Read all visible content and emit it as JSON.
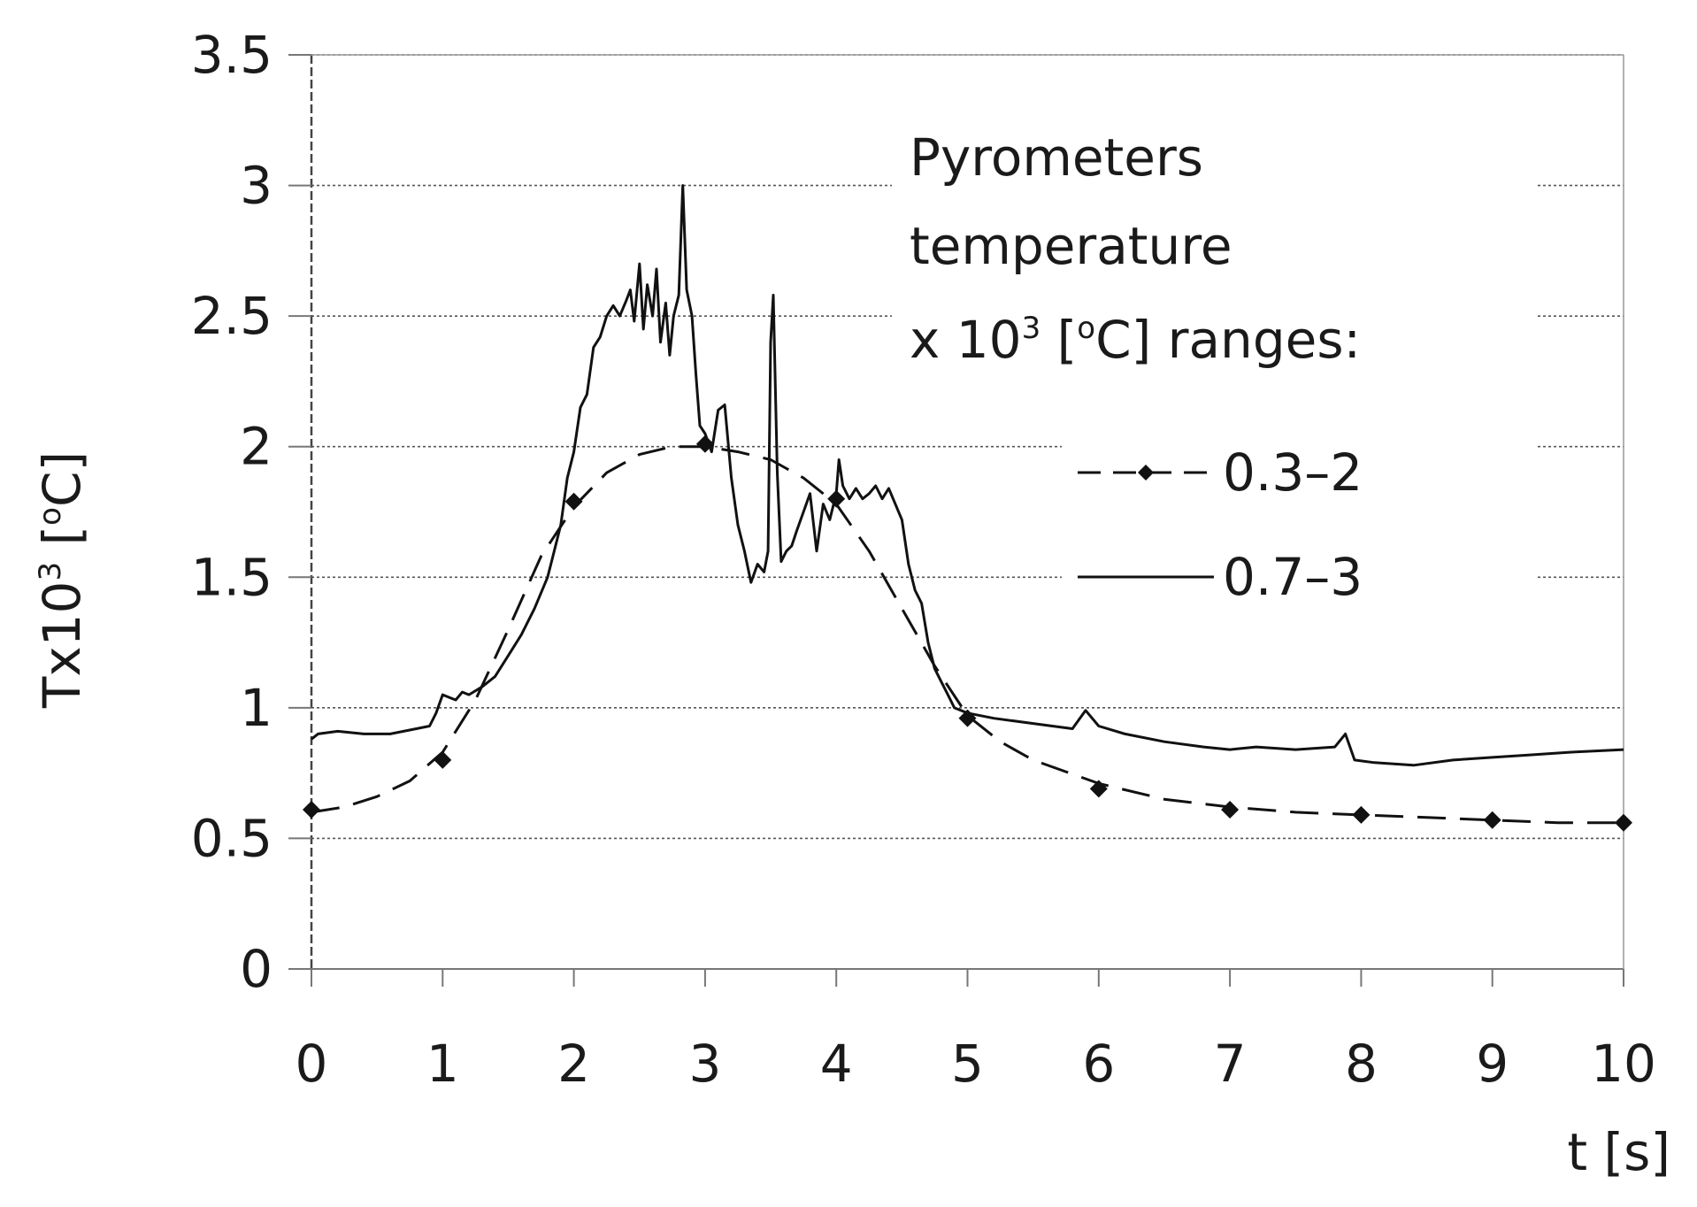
{
  "chart_data": {
    "type": "line",
    "xlabel": "t [s]",
    "ylabel_base": "Tx10",
    "ylabel_sup": "3",
    "ylabel_unit": " [",
    "ylabel_unit_sup": "o",
    "ylabel_unit_end": "C]",
    "xlim": [
      0,
      10
    ],
    "ylim": [
      0,
      3.5
    ],
    "x_ticks": [
      "0",
      "1",
      "2",
      "3",
      "4",
      "5",
      "6",
      "7",
      "8",
      "9",
      "10"
    ],
    "y_ticks": [
      "0",
      "0.5",
      "1",
      "1.5",
      "2",
      "2.5",
      "3",
      "3.5"
    ],
    "grid": "horizontal dotted",
    "legend": {
      "placement": "top-right",
      "title_line1": "Pyrometers",
      "title_line2": "temperature",
      "title_line3_prefix": "x 10",
      "title_line3_sup": "3",
      "title_line3_mid": " [",
      "title_line3_sup2": "o",
      "title_line3_suffix": "C] ranges:"
    },
    "series": [
      {
        "name": "0.3–2",
        "style": "dashed-diamond",
        "color": "#111111",
        "x": [
          0,
          0.25,
          0.5,
          0.75,
          1,
          1.25,
          1.5,
          1.75,
          2,
          2.25,
          2.5,
          2.75,
          3,
          3.25,
          3.5,
          3.75,
          4,
          4.25,
          4.5,
          4.75,
          5,
          5.25,
          5.5,
          6,
          6.5,
          7,
          7.5,
          8,
          8.5,
          9,
          9.5,
          10
        ],
        "y": [
          0.6,
          0.62,
          0.66,
          0.72,
          0.83,
          1.03,
          1.3,
          1.58,
          1.77,
          1.9,
          1.97,
          2.0,
          2.0,
          1.98,
          1.95,
          1.88,
          1.78,
          1.6,
          1.38,
          1.16,
          0.97,
          0.87,
          0.8,
          0.71,
          0.65,
          0.62,
          0.6,
          0.59,
          0.58,
          0.57,
          0.56,
          0.56
        ],
        "markers_x": [
          0,
          1,
          2,
          3,
          4,
          5,
          6,
          7,
          8,
          9,
          10
        ],
        "markers_y": [
          0.61,
          0.8,
          1.79,
          2.01,
          1.8,
          0.96,
          0.69,
          0.61,
          0.59,
          0.57,
          0.56
        ]
      },
      {
        "name": "0.7–3",
        "style": "solid",
        "color": "#111111",
        "x": [
          0,
          0.05,
          0.2,
          0.4,
          0.6,
          0.8,
          0.9,
          0.95,
          1.0,
          1.05,
          1.1,
          1.15,
          1.2,
          1.3,
          1.4,
          1.5,
          1.6,
          1.7,
          1.8,
          1.85,
          1.9,
          1.95,
          2.0,
          2.05,
          2.1,
          2.15,
          2.2,
          2.25,
          2.3,
          2.35,
          2.4,
          2.43,
          2.46,
          2.5,
          2.53,
          2.56,
          2.6,
          2.63,
          2.66,
          2.7,
          2.73,
          2.76,
          2.8,
          2.83,
          2.86,
          2.9,
          2.93,
          2.96,
          3.0,
          3.05,
          3.1,
          3.15,
          3.2,
          3.25,
          3.3,
          3.35,
          3.4,
          3.45,
          3.48,
          3.5,
          3.52,
          3.55,
          3.58,
          3.62,
          3.66,
          3.7,
          3.75,
          3.8,
          3.85,
          3.9,
          3.95,
          4.0,
          4.02,
          4.05,
          4.1,
          4.15,
          4.2,
          4.25,
          4.3,
          4.35,
          4.4,
          4.45,
          4.5,
          4.55,
          4.6,
          4.65,
          4.7,
          4.75,
          4.8,
          4.85,
          4.9,
          5.0,
          5.2,
          5.5,
          5.8,
          5.9,
          6.0,
          6.2,
          6.5,
          6.8,
          7.0,
          7.2,
          7.5,
          7.8,
          7.88,
          7.95,
          8.1,
          8.4,
          8.7,
          9.0,
          9.3,
          9.6,
          10.0
        ],
        "y": [
          0.88,
          0.9,
          0.91,
          0.9,
          0.9,
          0.92,
          0.93,
          0.98,
          1.05,
          1.04,
          1.03,
          1.06,
          1.05,
          1.08,
          1.12,
          1.2,
          1.28,
          1.38,
          1.5,
          1.6,
          1.7,
          1.88,
          1.98,
          2.15,
          2.2,
          2.38,
          2.42,
          2.5,
          2.54,
          2.5,
          2.56,
          2.6,
          2.48,
          2.7,
          2.45,
          2.62,
          2.5,
          2.68,
          2.4,
          2.55,
          2.35,
          2.5,
          2.58,
          3.0,
          2.6,
          2.5,
          2.28,
          2.08,
          2.05,
          1.98,
          2.14,
          2.16,
          1.88,
          1.7,
          1.6,
          1.48,
          1.55,
          1.52,
          1.6,
          2.4,
          2.58,
          1.9,
          1.56,
          1.6,
          1.62,
          1.68,
          1.75,
          1.82,
          1.6,
          1.78,
          1.72,
          1.82,
          1.95,
          1.85,
          1.8,
          1.84,
          1.8,
          1.82,
          1.85,
          1.8,
          1.84,
          1.78,
          1.72,
          1.55,
          1.45,
          1.4,
          1.25,
          1.15,
          1.1,
          1.05,
          1.0,
          0.98,
          0.96,
          0.94,
          0.92,
          0.99,
          0.93,
          0.9,
          0.87,
          0.85,
          0.84,
          0.85,
          0.84,
          0.85,
          0.9,
          0.8,
          0.79,
          0.78,
          0.8,
          0.81,
          0.82,
          0.83,
          0.84
        ]
      }
    ]
  }
}
